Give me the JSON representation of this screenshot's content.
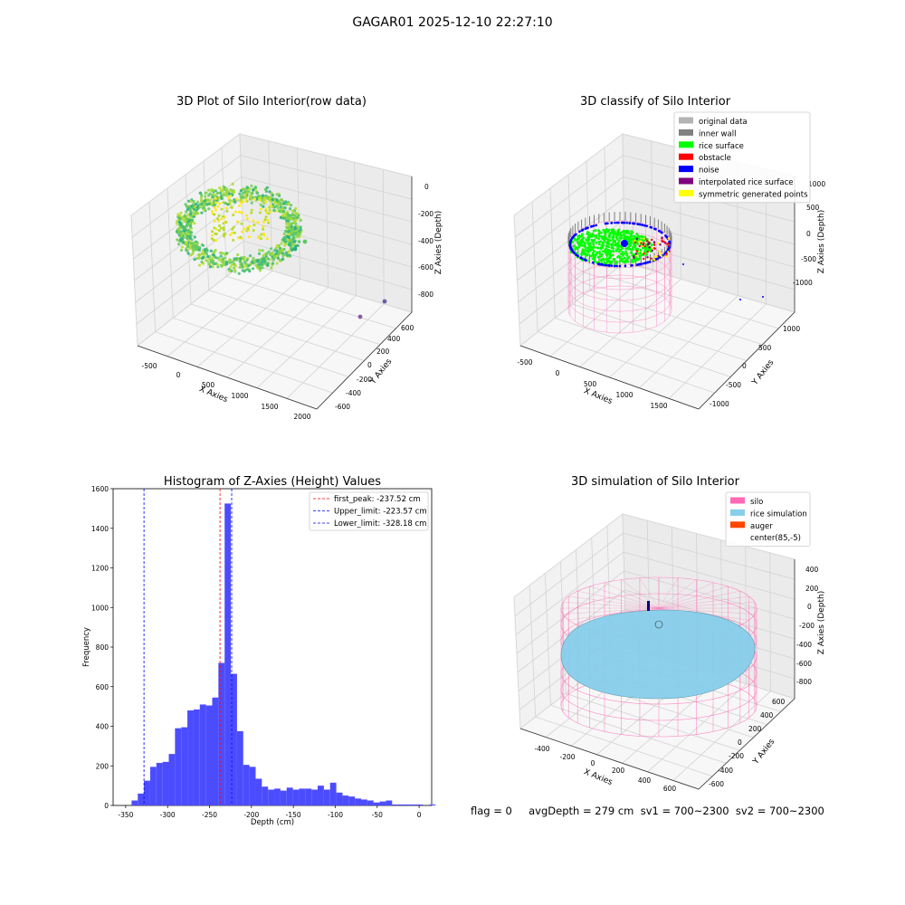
{
  "figure": {
    "suptitle": "GAGAR01 2025-12-10 22:27:10",
    "footer": "flag = 0     avgDepth = 279 cm  sv1 = 700~2300  sv2 = 700~2300"
  },
  "colors": {
    "hist_bar": "#4c4cff",
    "first_peak_line": "#ff0000",
    "limit_lines": "#0000ff",
    "original_data": "#b3b3b3",
    "inner_wall": "#808080",
    "rice_surface": "#00ff00",
    "obstacle": "#ff0000",
    "noise": "#0000ff",
    "interpolated_rice_surface": "#800080",
    "symmetric_generated_points": "#ffff00",
    "silo": "#ff69b4",
    "rice_simulation": "#87ceeb",
    "auger": "#ff4500",
    "center": "#ffffff"
  },
  "chart_data": [
    {
      "type": "scatter",
      "projection": "3d",
      "title": "3D Plot of Silo Interior(row data)",
      "xlabel": "X Axies",
      "ylabel": "Y Axies",
      "zlabel": "Z Axies (Depth)",
      "x_ticks": [
        "-500",
        "0",
        "500",
        "1000",
        "1500",
        "2000"
      ],
      "y_ticks": [
        "-600",
        "-400",
        "-200",
        "0",
        "200",
        "400",
        "600"
      ],
      "z_ticks": [
        "0",
        "-200",
        "-400",
        "-600",
        "-800"
      ],
      "colormap": "viridis",
      "note_points": "dense elliptical ring of surface points around depth -300 plus a few outlier points near x 1500-1800"
    },
    {
      "type": "scatter",
      "projection": "3d",
      "title": "3D classify of Silo Interior",
      "xlabel": "X Axies",
      "ylabel": "Y Axies",
      "zlabel": "Z Axies (Depth)",
      "x_ticks": [
        "-500",
        "0",
        "500",
        "1000",
        "1500"
      ],
      "y_ticks": [
        "-1000",
        "-500",
        "0",
        "500",
        "1000"
      ],
      "z_ticks": [
        "1000",
        "500",
        "0",
        "-500",
        "-1000"
      ],
      "legend": [
        {
          "label": "original data",
          "color": "#b3b3b3"
        },
        {
          "label": "inner wall",
          "color": "#808080"
        },
        {
          "label": "rice surface",
          "color": "#00ff00"
        },
        {
          "label": "obstacle",
          "color": "#ff0000"
        },
        {
          "label": "noise",
          "color": "#0000ff"
        },
        {
          "label": "interpolated rice surface",
          "color": "#800080"
        },
        {
          "label": "symmetric generated points",
          "color": "#ffff00"
        }
      ],
      "legend_loc": "upper right"
    },
    {
      "type": "bar",
      "title": "Histogram of Z-Axies (Height) Values",
      "xlabel": "Depth (cm)",
      "ylabel": "Frequency",
      "xlim": [
        -365,
        15
      ],
      "ylim": [
        0,
        1600
      ],
      "x_ticks": [
        -350,
        -300,
        -250,
        -200,
        -150,
        -100,
        -50,
        0
      ],
      "y_ticks": [
        0,
        200,
        400,
        600,
        800,
        1000,
        1200,
        1400,
        1600
      ],
      "bin_width": 7.4,
      "bin_start": -343,
      "values": [
        25,
        60,
        125,
        195,
        215,
        220,
        260,
        390,
        395,
        480,
        485,
        510,
        505,
        545,
        720,
        1525,
        665,
        375,
        205,
        195,
        135,
        95,
        80,
        85,
        75,
        90,
        80,
        85,
        85,
        80,
        100,
        80,
        115,
        65,
        50,
        45,
        35,
        30,
        25,
        15,
        20,
        25,
        5,
        5,
        5,
        5,
        5,
        0,
        5,
        0,
        0
      ],
      "vlines": [
        {
          "label": "first_peak: -237.52 cm",
          "x": -237.52,
          "color": "#ff0000"
        },
        {
          "label": "Upper_limit: -223.57 cm",
          "x": -223.57,
          "color": "#0000ff"
        },
        {
          "label": "Lower_limit: -328.18 cm",
          "x": -328.18,
          "color": "#0000ff"
        }
      ],
      "legend_loc": "upper right"
    },
    {
      "type": "scatter",
      "projection": "3d",
      "title": "3D simulation of Silo Interior",
      "xlabel": "X Axies",
      "ylabel": "Y Axies",
      "zlabel": "Z Axies (Depth)",
      "x_ticks": [
        "-400",
        "-200",
        "0",
        "200",
        "400",
        "600"
      ],
      "y_ticks": [
        "-600",
        "-400",
        "-200",
        "0",
        "200",
        "400",
        "600"
      ],
      "z_ticks": [
        "400",
        "200",
        "0",
        "-200",
        "-400",
        "-600",
        "-800"
      ],
      "legend": [
        {
          "label": "silo",
          "color": "#ff69b4"
        },
        {
          "label": "rice simulation",
          "color": "#87ceeb"
        },
        {
          "label": "auger",
          "color": "#ff4500"
        },
        {
          "label": "center(85,-5)",
          "color": "#ffffff"
        }
      ],
      "legend_loc": "upper right"
    }
  ]
}
